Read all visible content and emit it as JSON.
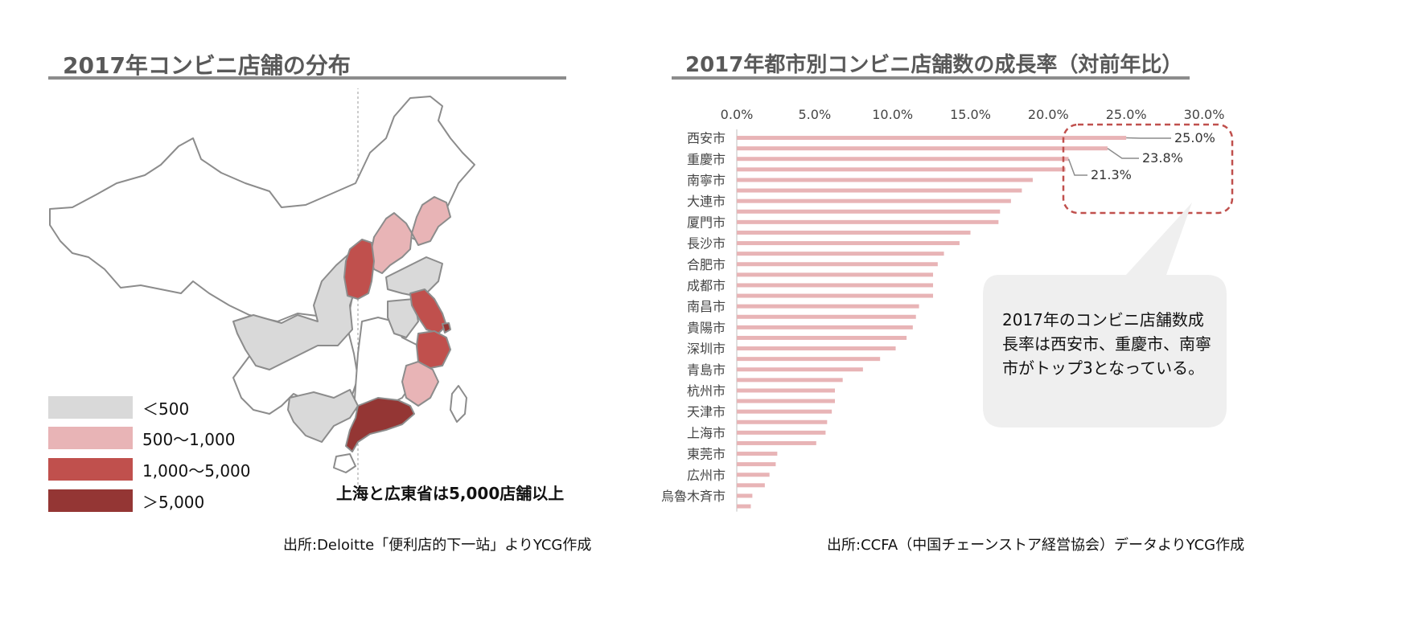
{
  "left": {
    "title": "2017年コンビニ店舗の分布",
    "legend": [
      {
        "label": "＜500",
        "color": "#d9d9d9"
      },
      {
        "label": "500～1,000",
        "color": "#e8b4b6"
      },
      {
        "label": "1,000～5,000",
        "color": "#c0504d"
      },
      {
        "label": "＞5,000",
        "color": "#943634"
      }
    ],
    "note": "上海と広東省は5,000店舗以上",
    "source": "出所:Deloitte「便利店的下一站」よりYCG作成"
  },
  "right": {
    "title": "2017年都市別コンビニ店舗数の成長率（対前年比）",
    "callout": "2017年のコンビニ店舗数成長率は西安市、重慶市、南寧市がトップ3となっている。",
    "source": "出所:CCFA（中国チェーンストア経営協会）データよりYCG作成"
  },
  "chart_data": {
    "type": "bar",
    "orientation": "horizontal",
    "title": "2017年都市別コンビニ店舗数の成長率（対前年比）",
    "xlim": [
      0,
      30
    ],
    "ticks": [
      "0.0%",
      "5.0%",
      "10.0%",
      "15.0%",
      "20.0%",
      "25.0%",
      "30.0%"
    ],
    "bar_color": "#e8b4b6",
    "categories": [
      "西安市",
      "",
      "重慶市",
      "",
      "南寧市",
      "",
      "大連市",
      "",
      "厦門市",
      "",
      "長沙市",
      "",
      "合肥市",
      "",
      "成都市",
      "",
      "南昌市",
      "",
      "貴陽市",
      "",
      "深圳市",
      "",
      "青島市",
      "",
      "杭州市",
      "",
      "天津市",
      "",
      "上海市",
      "",
      "東莞市",
      "",
      "広州市",
      "",
      "烏魯木斉市",
      ""
    ],
    "values": [
      25.0,
      23.8,
      21.3,
      21.1,
      19.0,
      18.3,
      17.6,
      16.9,
      16.8,
      15.0,
      14.3,
      13.3,
      12.9,
      12.6,
      12.6,
      12.6,
      11.7,
      11.5,
      11.3,
      10.9,
      10.2,
      9.2,
      8.1,
      6.8,
      6.3,
      6.3,
      6.1,
      5.8,
      5.7,
      5.1,
      2.6,
      2.5,
      2.1,
      1.8,
      1.0,
      0.9
    ],
    "labels": [
      {
        "index": 0,
        "text": "25.0%"
      },
      {
        "index": 1,
        "text": "23.8%"
      },
      {
        "index": 2,
        "text": "21.3%"
      }
    ]
  }
}
